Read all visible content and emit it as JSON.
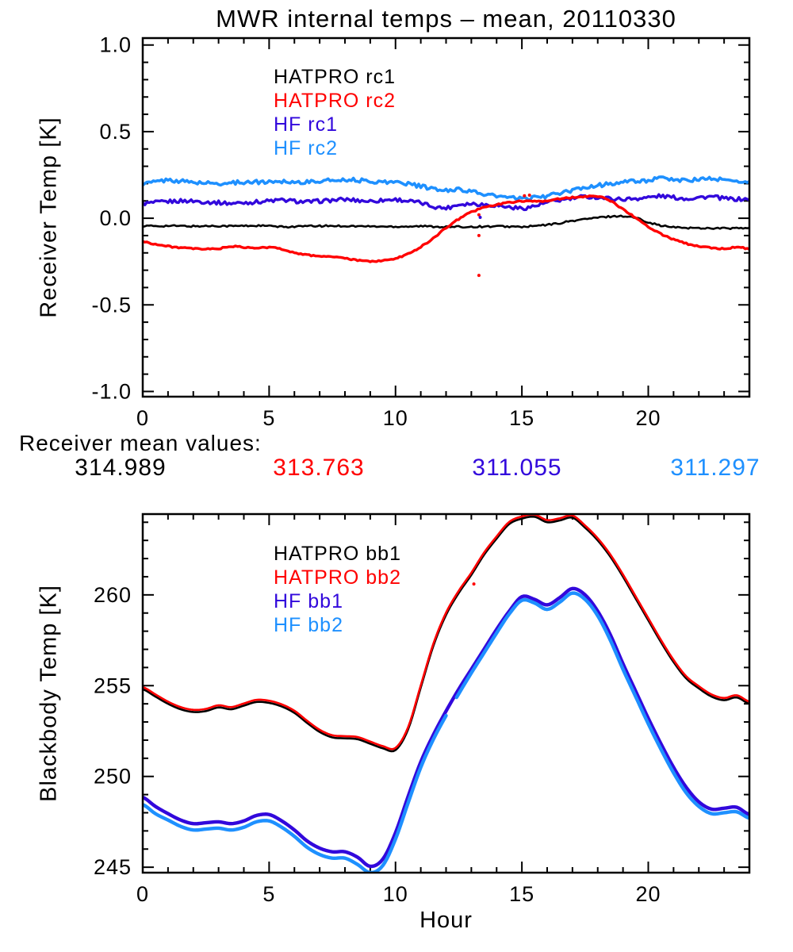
{
  "title": "MWR internal temps – mean, 20110330",
  "colors": {
    "black": "#000000",
    "red": "#ff0000",
    "blue_dark": "#3208dc",
    "blue_light": "#1e90ff"
  },
  "mean_values": {
    "label": "Receiver mean values:",
    "values": [
      {
        "value": "314.989",
        "color": "black"
      },
      {
        "value": "313.763",
        "color": "red"
      },
      {
        "value": "311.055",
        "color": "blue_dark"
      },
      {
        "value": "311.297",
        "color": "blue_light"
      }
    ]
  },
  "x_axis_label": "Hour",
  "chart_data": [
    {
      "type": "line",
      "panel": "receiver-temp",
      "title": "MWR internal temps – mean, 20110330",
      "ylabel": "Receiver Temp [K]",
      "xlabel": "",
      "xlim": [
        0,
        24
      ],
      "ylim": [
        -1.03,
        1.04
      ],
      "x_major_ticks": [
        0,
        5,
        10,
        15,
        20
      ],
      "x_major_labels": [
        "0",
        "5",
        "10",
        "15",
        "20"
      ],
      "x_minor_step": 1,
      "y_major_ticks": [
        -1.0,
        -0.5,
        0.0,
        0.5,
        1.0
      ],
      "y_major_labels": [
        "-1.0",
        "-0.5",
        "0.0",
        "0.5",
        "1.0"
      ],
      "y_minor_step": 0.1,
      "grid": false,
      "legend_position": "upper-left-inside",
      "legend": [
        {
          "label": "HATPRO rc1",
          "color": "black"
        },
        {
          "label": "HATPRO rc2",
          "color": "red"
        },
        {
          "label": "HF rc1",
          "color": "blue_dark"
        },
        {
          "label": "HF rc2",
          "color": "blue_light"
        }
      ],
      "x_start": 0,
      "x_step": 0.5,
      "series": [
        {
          "name": "hatpro-rc1",
          "color": "black",
          "width": 2.6,
          "noise": 0.005,
          "values": [
            -0.045,
            -0.045,
            -0.044,
            -0.045,
            -0.046,
            -0.045,
            -0.044,
            -0.045,
            -0.044,
            -0.043,
            -0.045,
            -0.05,
            -0.048,
            -0.046,
            -0.045,
            -0.044,
            -0.045,
            -0.046,
            -0.047,
            -0.048,
            -0.048,
            -0.047,
            -0.046,
            -0.048,
            -0.05,
            -0.05,
            -0.049,
            -0.048,
            -0.047,
            -0.048,
            -0.05,
            -0.045,
            -0.038,
            -0.028,
            -0.015,
            -0.005,
            0.003,
            0.01,
            0.012,
            0.002,
            -0.022,
            -0.042,
            -0.052,
            -0.055,
            -0.057,
            -0.057,
            -0.058,
            -0.058,
            -0.058
          ]
        },
        {
          "name": "hf-rc1",
          "color": "blue_dark",
          "width": 3.4,
          "noise": 0.011,
          "values": [
            0.085,
            0.09,
            0.096,
            0.1,
            0.099,
            0.094,
            0.09,
            0.086,
            0.09,
            0.094,
            0.1,
            0.104,
            0.099,
            0.094,
            0.099,
            0.104,
            0.108,
            0.103,
            0.099,
            0.104,
            0.108,
            0.099,
            0.088,
            0.068,
            0.06,
            0.079,
            0.084,
            0.079,
            0.074,
            0.064,
            0.058,
            0.07,
            0.09,
            0.104,
            0.114,
            0.124,
            0.12,
            0.114,
            0.11,
            0.114,
            0.12,
            0.128,
            0.12,
            0.114,
            0.12,
            0.124,
            0.114,
            0.11,
            0.11
          ]
        },
        {
          "name": "hf-rc2",
          "color": "blue_light",
          "width": 3.6,
          "noise": 0.011,
          "values": [
            0.2,
            0.21,
            0.22,
            0.214,
            0.208,
            0.203,
            0.2,
            0.204,
            0.209,
            0.209,
            0.21,
            0.214,
            0.209,
            0.209,
            0.214,
            0.219,
            0.224,
            0.219,
            0.214,
            0.209,
            0.209,
            0.199,
            0.184,
            0.169,
            0.159,
            0.168,
            0.154,
            0.139,
            0.128,
            0.118,
            0.113,
            0.119,
            0.129,
            0.144,
            0.159,
            0.178,
            0.189,
            0.199,
            0.209,
            0.214,
            0.219,
            0.229,
            0.224,
            0.219,
            0.224,
            0.229,
            0.219,
            0.214,
            0.209
          ]
        },
        {
          "name": "hatpro-rc2",
          "color": "red",
          "width": 3.4,
          "noise": 0.004,
          "values": [
            -0.135,
            -0.15,
            -0.162,
            -0.17,
            -0.176,
            -0.178,
            -0.175,
            -0.163,
            -0.168,
            -0.173,
            -0.168,
            -0.178,
            -0.198,
            -0.212,
            -0.218,
            -0.222,
            -0.232,
            -0.243,
            -0.248,
            -0.245,
            -0.232,
            -0.205,
            -0.165,
            -0.115,
            -0.055,
            -0.005,
            0.035,
            0.062,
            0.078,
            0.09,
            0.1,
            0.096,
            0.102,
            0.112,
            0.12,
            0.126,
            0.128,
            0.1,
            0.052,
            0.002,
            -0.048,
            -0.09,
            -0.122,
            -0.146,
            -0.161,
            -0.17,
            -0.176,
            -0.166,
            -0.177
          ]
        }
      ],
      "artifact_points": [
        {
          "x": 13.3,
          "y": 0.02,
          "color": "red"
        },
        {
          "x": 13.3,
          "y": -0.1,
          "color": "red"
        },
        {
          "x": 13.3,
          "y": -0.33,
          "color": "red"
        },
        {
          "x": 13.35,
          "y": 0.005,
          "color": "blue_dark"
        },
        {
          "x": 15.1,
          "y": 0.13,
          "color": "red"
        },
        {
          "x": 15.3,
          "y": 0.133,
          "color": "red"
        }
      ]
    },
    {
      "type": "line",
      "panel": "blackbody-temp",
      "title": "",
      "ylabel": "Blackbody Temp [K]",
      "xlabel": "Hour",
      "xlim": [
        0,
        24
      ],
      "ylim": [
        244.7,
        264.45
      ],
      "x_major_ticks": [
        0,
        5,
        10,
        15,
        20
      ],
      "x_major_labels": [
        "0",
        "5",
        "10",
        "15",
        "20"
      ],
      "x_minor_step": 1,
      "y_major_ticks": [
        245,
        250,
        255,
        260
      ],
      "y_major_labels": [
        "245",
        "250",
        "255",
        "260"
      ],
      "y_minor_step": 1,
      "grid": false,
      "legend_position": "upper-left-inside",
      "legend": [
        {
          "label": "HATPRO bb1",
          "color": "black"
        },
        {
          "label": "HATPRO bb2",
          "color": "red"
        },
        {
          "label": "HF bb1",
          "color": "blue_dark"
        },
        {
          "label": "HF bb2",
          "color": "blue_light"
        }
      ],
      "x_start": 0,
      "x_step": 0.5,
      "series": [
        {
          "name": "hatpro-bb1",
          "color": "black",
          "width": 2.6,
          "noise": 0,
          "values": [
            254.8,
            254.4,
            254.0,
            253.7,
            253.55,
            253.6,
            253.8,
            253.7,
            253.9,
            254.1,
            254.05,
            253.85,
            253.5,
            252.95,
            252.45,
            252.15,
            252.1,
            252.05,
            251.8,
            251.55,
            251.45,
            252.6,
            254.9,
            257.2,
            258.9,
            260.1,
            261.1,
            262.2,
            263.1,
            263.9,
            264.2,
            264.3,
            264.0,
            264.1,
            264.25,
            263.7,
            263.0,
            262.1,
            261.0,
            259.8,
            258.6,
            257.4,
            256.3,
            255.4,
            254.85,
            254.4,
            254.2,
            254.35,
            254.0
          ]
        },
        {
          "name": "hatpro-bb2",
          "color": "red",
          "width": 2.6,
          "noise": 0,
          "values": [
            254.92,
            254.52,
            254.12,
            253.82,
            253.67,
            253.72,
            253.92,
            253.82,
            254.02,
            254.22,
            254.17,
            253.97,
            253.62,
            253.07,
            252.57,
            252.27,
            252.22,
            252.17,
            251.92,
            251.67,
            251.57,
            252.72,
            255.02,
            257.32,
            259.02,
            260.22,
            261.22,
            262.32,
            263.22,
            264.02,
            264.32,
            264.42,
            264.12,
            264.22,
            264.37,
            263.82,
            263.12,
            262.22,
            261.12,
            259.92,
            258.72,
            257.52,
            256.42,
            255.52,
            254.97,
            254.52,
            254.32,
            254.47,
            254.12
          ]
        },
        {
          "name": "hf-bb1",
          "color": "blue_dark",
          "width": 4.4,
          "noise": 0,
          "values": [
            248.85,
            248.35,
            247.95,
            247.6,
            247.4,
            247.45,
            247.5,
            247.4,
            247.55,
            247.85,
            247.9,
            247.55,
            247.05,
            246.45,
            246.05,
            245.85,
            245.85,
            245.55,
            245.05,
            245.45,
            246.9,
            248.9,
            250.8,
            252.3,
            253.6,
            254.8,
            255.9,
            257.0,
            258.1,
            259.1,
            259.9,
            259.75,
            259.45,
            259.85,
            260.35,
            260.0,
            259.1,
            257.8,
            256.2,
            254.7,
            253.2,
            251.8,
            250.5,
            249.4,
            248.6,
            248.2,
            248.25,
            248.3,
            247.9
          ]
        },
        {
          "name": "hf-bb2",
          "color": "blue_light",
          "width": 4.4,
          "noise": 0,
          "gaps": [
            [
              12.05,
              12.35
            ]
          ],
          "values": [
            248.45,
            247.95,
            247.6,
            247.25,
            247.05,
            247.1,
            247.15,
            247.05,
            247.2,
            247.5,
            247.55,
            247.2,
            246.7,
            246.1,
            245.7,
            245.5,
            245.5,
            245.15,
            244.7,
            245.1,
            246.55,
            248.55,
            250.5,
            252.05,
            253.35,
            254.55,
            255.7,
            256.8,
            257.9,
            258.95,
            259.7,
            259.55,
            259.2,
            259.6,
            260.1,
            259.75,
            258.85,
            257.5,
            255.9,
            254.4,
            252.9,
            251.5,
            250.2,
            249.1,
            248.35,
            247.95,
            248.0,
            248.05,
            247.7
          ]
        }
      ],
      "artifact_points": [
        {
          "x": 13.1,
          "y": 260.6,
          "color": "red"
        }
      ]
    }
  ]
}
